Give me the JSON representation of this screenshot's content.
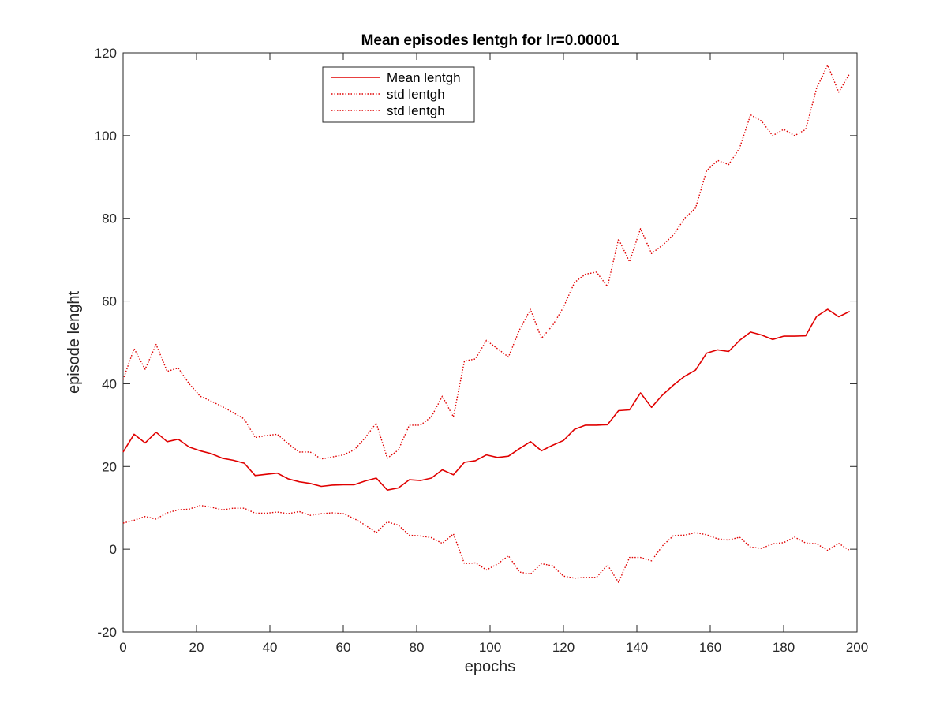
{
  "chart_data": {
    "type": "line",
    "title": "Mean episodes lentgh for lr=0.00001",
    "xlabel": "epochs",
    "ylabel": "episode lenght",
    "xlim": [
      0,
      200
    ],
    "ylim": [
      -20,
      120
    ],
    "xticks": [
      0,
      20,
      40,
      60,
      80,
      100,
      120,
      140,
      160,
      180,
      200
    ],
    "yticks": [
      -20,
      0,
      20,
      40,
      60,
      80,
      100,
      120
    ],
    "grid": false,
    "legend_position": "top-center",
    "line_color": "#e00000",
    "x": [
      0,
      3,
      6,
      9,
      12,
      15,
      18,
      21,
      24,
      27,
      30,
      33,
      36,
      39,
      42,
      45,
      48,
      51,
      54,
      57,
      60,
      63,
      66,
      69,
      72,
      75,
      78,
      81,
      84,
      87,
      90,
      93,
      96,
      99,
      102,
      105,
      108,
      111,
      114,
      117,
      120,
      123,
      126,
      129,
      132,
      135,
      138,
      141,
      144,
      147,
      150,
      153,
      156,
      159,
      162,
      165,
      168,
      171,
      174,
      177,
      180,
      183,
      186,
      189,
      192,
      195,
      198
    ],
    "series": [
      {
        "name": "Mean lentgh",
        "style": "solid",
        "values": [
          23.5,
          27.8,
          25.7,
          28.3,
          26.0,
          26.6,
          24.7,
          23.8,
          23.1,
          22.0,
          21.5,
          20.8,
          17.8,
          18.1,
          18.4,
          17.0,
          16.3,
          15.9,
          15.2,
          15.5,
          15.6,
          15.6,
          16.5,
          17.2,
          14.3,
          14.8,
          16.8,
          16.6,
          17.2,
          19.2,
          18.0,
          21.0,
          21.4,
          22.8,
          22.2,
          22.5,
          24.3,
          26.0,
          23.8,
          25.1,
          26.3,
          29.0,
          30.0,
          30.0,
          30.1,
          33.5,
          33.7,
          37.8,
          34.3,
          37.3,
          39.7,
          41.8,
          43.3,
          47.4,
          48.2,
          47.8,
          50.5,
          52.5,
          51.8,
          50.7,
          51.5,
          51.5,
          51.6,
          56.3,
          58.0,
          56.2,
          57.5
        ]
      },
      {
        "name": "std lentgh",
        "style": "dotted",
        "values": [
          41.0,
          48.5,
          43.5,
          49.5,
          43.0,
          43.8,
          40.0,
          37.0,
          35.8,
          34.5,
          33.0,
          31.5,
          27.0,
          27.5,
          27.8,
          25.5,
          23.5,
          23.5,
          21.8,
          22.3,
          22.8,
          24.0,
          27.0,
          30.5,
          22.0,
          24.0,
          30.0,
          30.0,
          32.0,
          37.0,
          32.0,
          45.5,
          46.0,
          50.5,
          48.5,
          46.5,
          53.0,
          58.0,
          51.0,
          54.0,
          58.5,
          64.5,
          66.5,
          67.0,
          63.5,
          75.0,
          69.5,
          77.5,
          71.5,
          73.5,
          76.0,
          80.0,
          82.5,
          91.5,
          94.0,
          93.0,
          97.0,
          105.0,
          103.5,
          100.0,
          101.5,
          100.0,
          101.5,
          111.5,
          117.0,
          110.5,
          115.0
        ]
      },
      {
        "name": "std lentgh",
        "style": "dotted",
        "values": [
          6.3,
          7.0,
          7.9,
          7.3,
          8.8,
          9.5,
          9.7,
          10.6,
          10.2,
          9.5,
          9.9,
          9.9,
          8.7,
          8.7,
          9.0,
          8.6,
          9.1,
          8.2,
          8.6,
          8.8,
          8.6,
          7.4,
          5.8,
          4.0,
          6.6,
          5.8,
          3.4,
          3.2,
          2.8,
          1.4,
          3.7,
          -3.5,
          -3.3,
          -5.0,
          -3.6,
          -1.6,
          -5.5,
          -6.0,
          -3.5,
          -4.0,
          -6.5,
          -7.0,
          -6.8,
          -6.8,
          -3.8,
          -8.0,
          -2.0,
          -2.0,
          -2.8,
          0.8,
          3.3,
          3.4,
          4.0,
          3.5,
          2.5,
          2.2,
          2.9,
          0.5,
          0.2,
          1.3,
          1.6,
          2.9,
          1.5,
          1.3,
          -0.3,
          1.4,
          -0.3
        ]
      }
    ]
  }
}
